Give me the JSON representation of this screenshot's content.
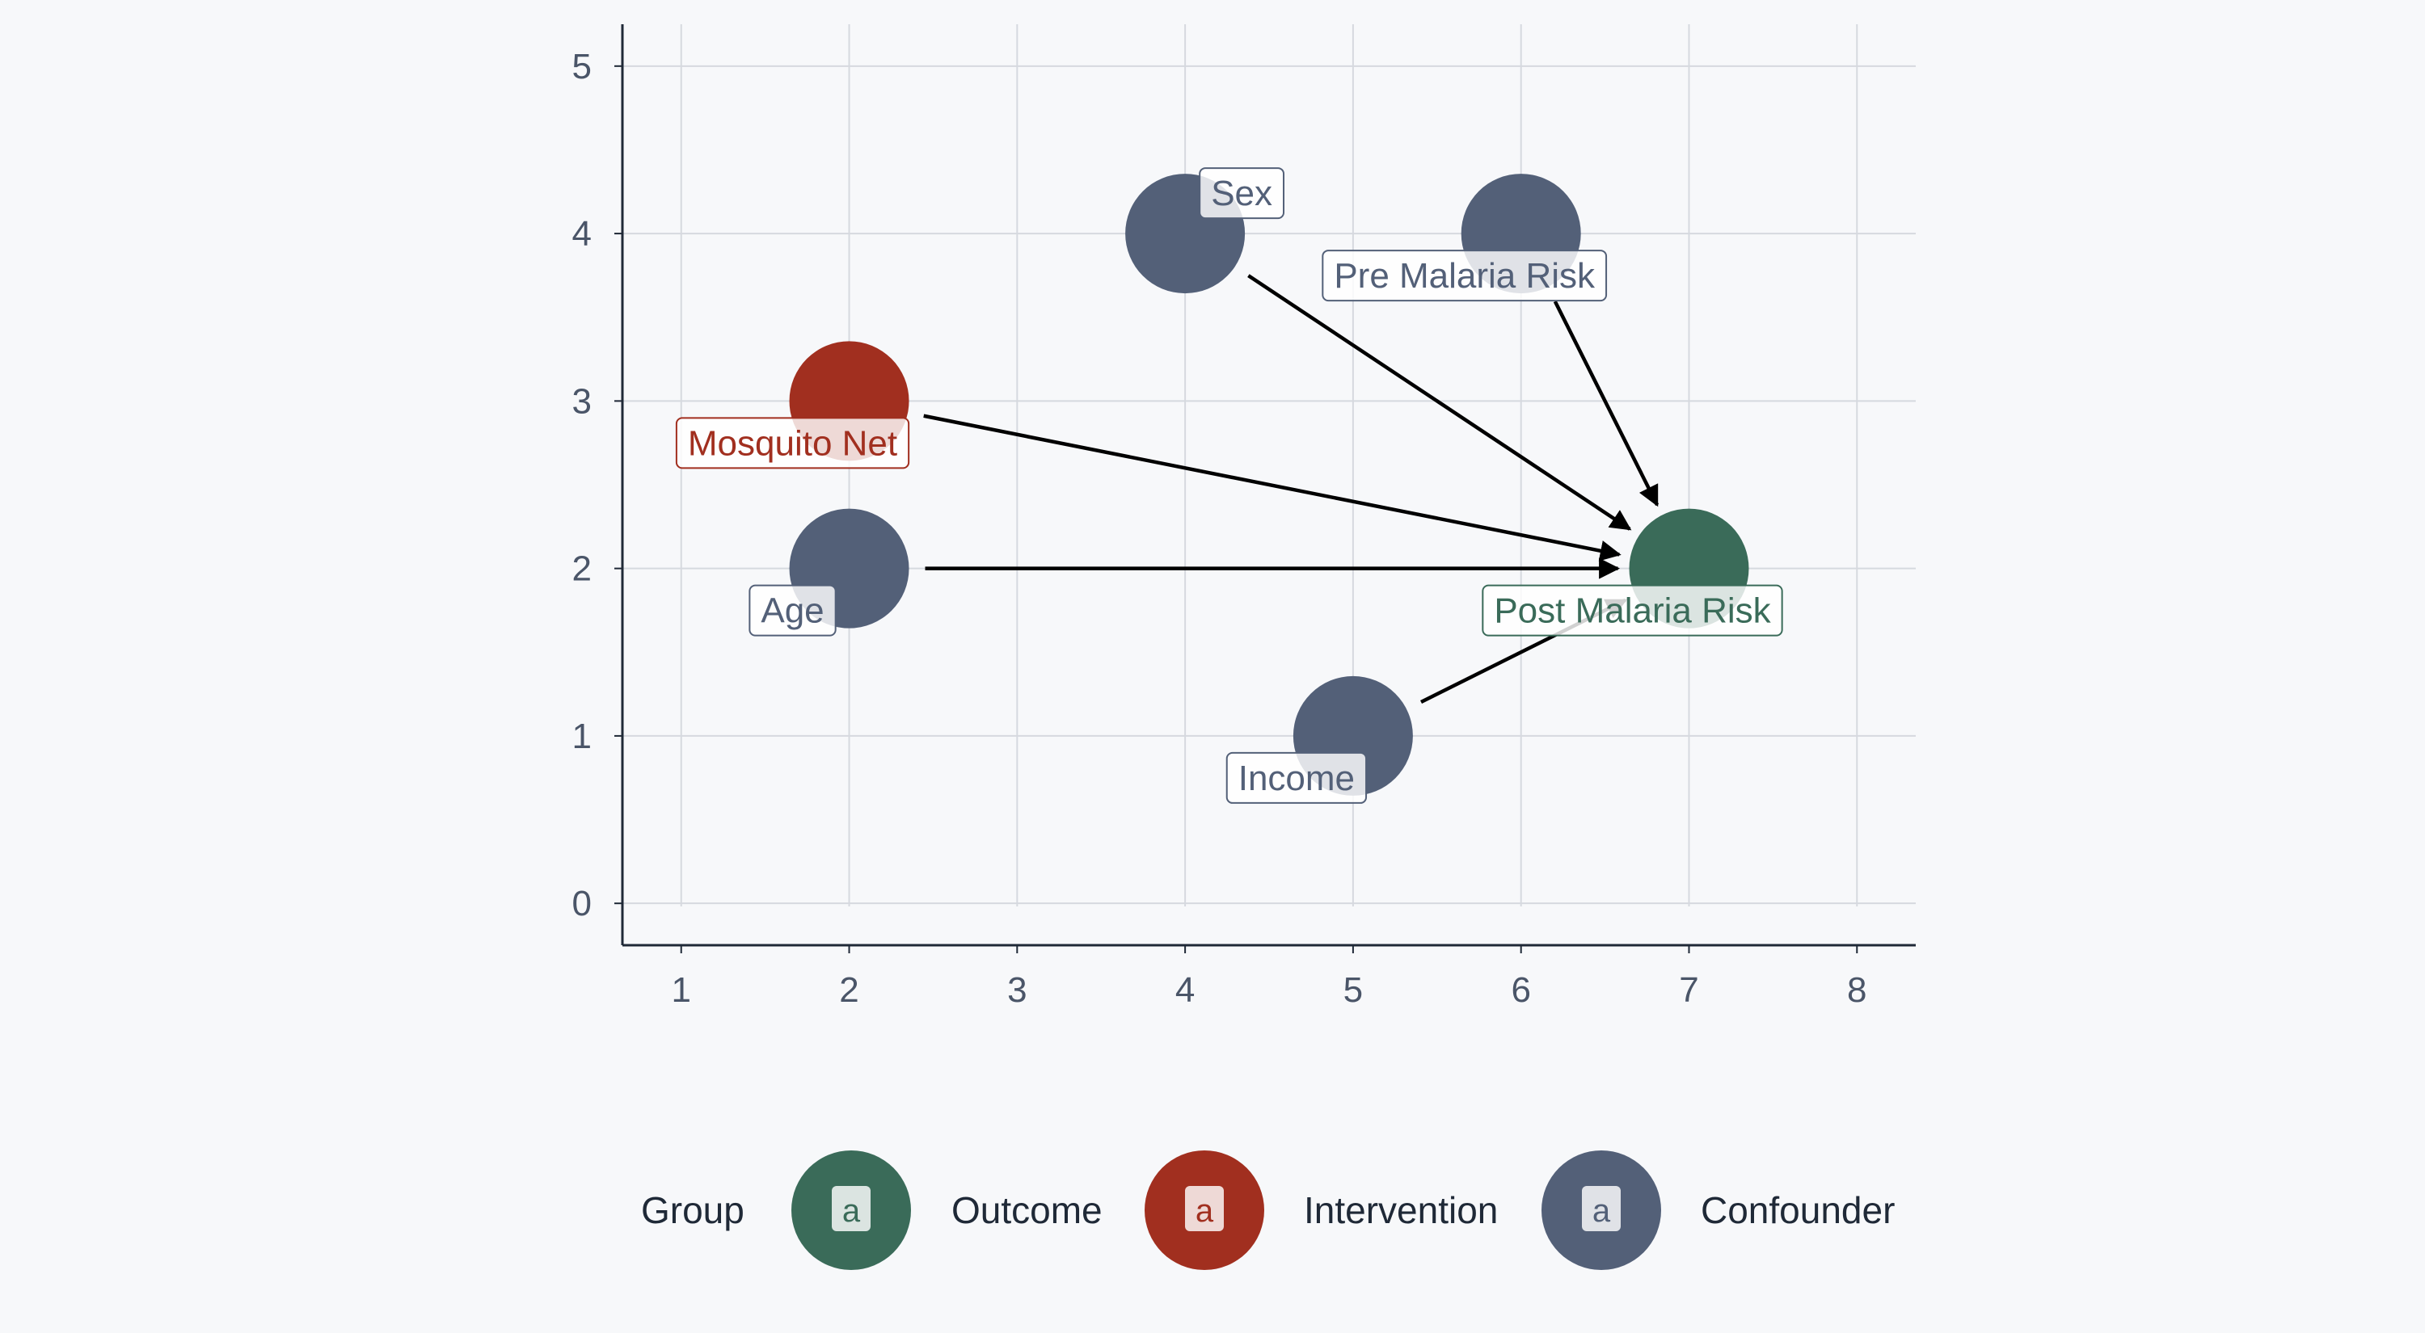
{
  "chart_data": {
    "type": "scatter",
    "title": "",
    "xlabel": "",
    "ylabel": "",
    "xlim": [
      0.65,
      8.35
    ],
    "ylim": [
      -0.25,
      5.25
    ],
    "x_ticks": [
      1,
      2,
      3,
      4,
      5,
      6,
      7,
      8
    ],
    "y_ticks": [
      0,
      1,
      2,
      3,
      4,
      5
    ],
    "grid": true,
    "groups": [
      {
        "name": "Outcome",
        "color": "#3a6b59"
      },
      {
        "name": "Intervention",
        "color": "#a12f1f"
      },
      {
        "name": "Confounder",
        "color": "#536078"
      }
    ],
    "nodes": [
      {
        "id": "sex",
        "name": "Sex",
        "x": 4,
        "y": 4,
        "group": "Confounder"
      },
      {
        "id": "pre_malaria_risk",
        "name": "Pre Malaria Risk",
        "x": 6,
        "y": 4,
        "group": "Confounder"
      },
      {
        "id": "mosquito_net",
        "name": "Mosquito Net",
        "x": 2,
        "y": 3,
        "group": "Intervention"
      },
      {
        "id": "age",
        "name": "Age",
        "x": 2,
        "y": 2,
        "group": "Confounder"
      },
      {
        "id": "income",
        "name": "Income",
        "x": 5,
        "y": 1,
        "group": "Confounder"
      },
      {
        "id": "post_malaria_risk",
        "name": "Post Malaria Risk",
        "x": 7,
        "y": 2,
        "group": "Outcome"
      }
    ],
    "edges": [
      {
        "from": "sex",
        "to": "post_malaria_risk"
      },
      {
        "from": "pre_malaria_risk",
        "to": "post_malaria_risk"
      },
      {
        "from": "mosquito_net",
        "to": "post_malaria_risk"
      },
      {
        "from": "age",
        "to": "post_malaria_risk"
      },
      {
        "from": "income",
        "to": "post_malaria_risk"
      }
    ],
    "legend": {
      "title": "Group",
      "position": "bottom",
      "key_glyph": "a",
      "items": [
        "Outcome",
        "Intervention",
        "Confounder"
      ]
    }
  }
}
